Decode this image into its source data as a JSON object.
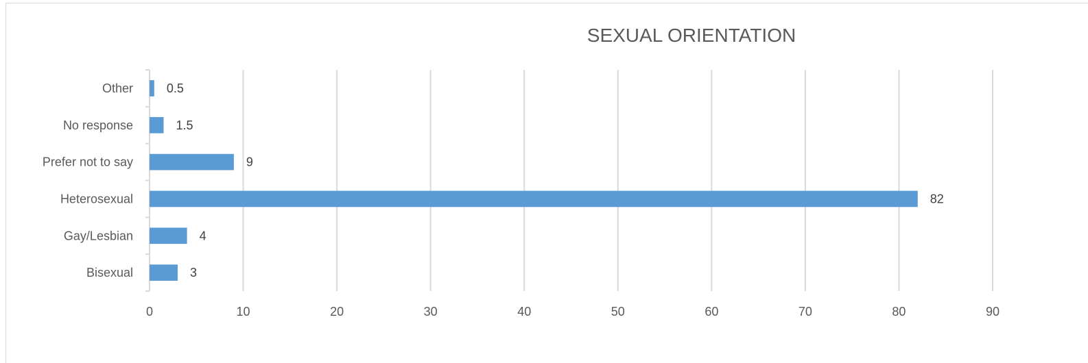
{
  "chart_data": {
    "type": "bar",
    "orientation": "horizontal",
    "title": "SEXUAL ORIENTATION",
    "xlabel": "",
    "ylabel": "",
    "categories": [
      "Other",
      "No response",
      "Prefer not to say",
      "Heterosexual",
      "Gay/Lesbian",
      "Bisexual"
    ],
    "values": [
      0.5,
      1.5,
      9,
      82,
      4,
      3
    ],
    "data_labels": [
      "0.5",
      "1.5",
      "9",
      "82",
      "4",
      "3"
    ],
    "xlim": [
      0,
      90
    ],
    "x_ticks": [
      0,
      10,
      20,
      30,
      40,
      50,
      60,
      70,
      80,
      90
    ],
    "x_tick_labels": [
      "0",
      "10",
      "20",
      "30",
      "40",
      "50",
      "60",
      "70",
      "80",
      "90"
    ],
    "grid": "vertical",
    "legend": "none",
    "bar_color": "#5b9bd5",
    "grid_color": "#d9d9d9"
  }
}
